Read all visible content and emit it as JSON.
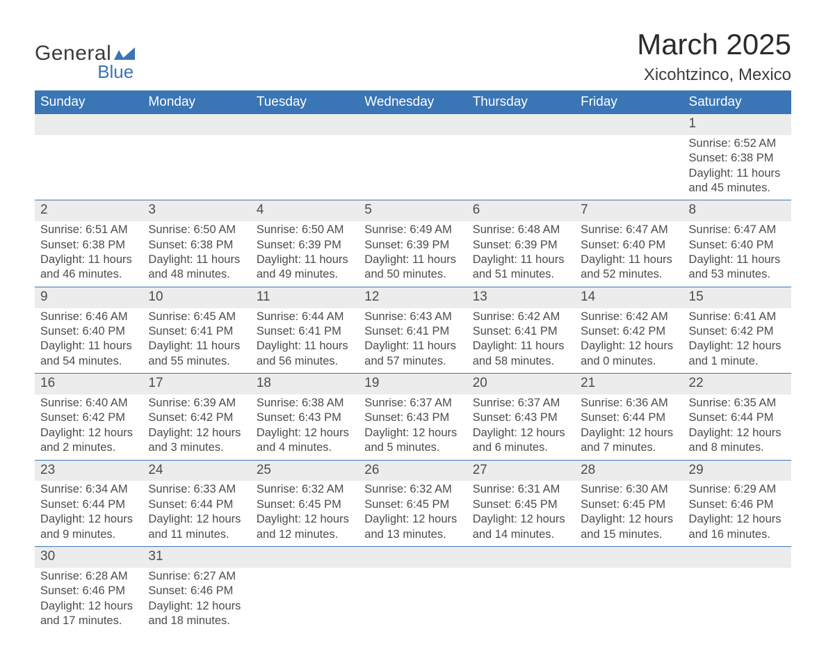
{
  "logo": {
    "text1": "General",
    "text2": "Blue"
  },
  "title": "March 2025",
  "subtitle": "Xicohtzinco, Mexico",
  "colors": {
    "header_bg": "#3a75b5",
    "header_text": "#ffffff",
    "daynum_bg": "#ececec",
    "text": "#4c4c4c",
    "row_border": "#3a75b5",
    "background": "#ffffff"
  },
  "weekdays": [
    "Sunday",
    "Monday",
    "Tuesday",
    "Wednesday",
    "Thursday",
    "Friday",
    "Saturday"
  ],
  "weeks": [
    [
      null,
      null,
      null,
      null,
      null,
      null,
      {
        "n": "1",
        "sr": "Sunrise: 6:52 AM",
        "ss": "Sunset: 6:38 PM",
        "dl": "Daylight: 11 hours and 45 minutes."
      }
    ],
    [
      {
        "n": "2",
        "sr": "Sunrise: 6:51 AM",
        "ss": "Sunset: 6:38 PM",
        "dl": "Daylight: 11 hours and 46 minutes."
      },
      {
        "n": "3",
        "sr": "Sunrise: 6:50 AM",
        "ss": "Sunset: 6:38 PM",
        "dl": "Daylight: 11 hours and 48 minutes."
      },
      {
        "n": "4",
        "sr": "Sunrise: 6:50 AM",
        "ss": "Sunset: 6:39 PM",
        "dl": "Daylight: 11 hours and 49 minutes."
      },
      {
        "n": "5",
        "sr": "Sunrise: 6:49 AM",
        "ss": "Sunset: 6:39 PM",
        "dl": "Daylight: 11 hours and 50 minutes."
      },
      {
        "n": "6",
        "sr": "Sunrise: 6:48 AM",
        "ss": "Sunset: 6:39 PM",
        "dl": "Daylight: 11 hours and 51 minutes."
      },
      {
        "n": "7",
        "sr": "Sunrise: 6:47 AM",
        "ss": "Sunset: 6:40 PM",
        "dl": "Daylight: 11 hours and 52 minutes."
      },
      {
        "n": "8",
        "sr": "Sunrise: 6:47 AM",
        "ss": "Sunset: 6:40 PM",
        "dl": "Daylight: 11 hours and 53 minutes."
      }
    ],
    [
      {
        "n": "9",
        "sr": "Sunrise: 6:46 AM",
        "ss": "Sunset: 6:40 PM",
        "dl": "Daylight: 11 hours and 54 minutes."
      },
      {
        "n": "10",
        "sr": "Sunrise: 6:45 AM",
        "ss": "Sunset: 6:41 PM",
        "dl": "Daylight: 11 hours and 55 minutes."
      },
      {
        "n": "11",
        "sr": "Sunrise: 6:44 AM",
        "ss": "Sunset: 6:41 PM",
        "dl": "Daylight: 11 hours and 56 minutes."
      },
      {
        "n": "12",
        "sr": "Sunrise: 6:43 AM",
        "ss": "Sunset: 6:41 PM",
        "dl": "Daylight: 11 hours and 57 minutes."
      },
      {
        "n": "13",
        "sr": "Sunrise: 6:42 AM",
        "ss": "Sunset: 6:41 PM",
        "dl": "Daylight: 11 hours and 58 minutes."
      },
      {
        "n": "14",
        "sr": "Sunrise: 6:42 AM",
        "ss": "Sunset: 6:42 PM",
        "dl": "Daylight: 12 hours and 0 minutes."
      },
      {
        "n": "15",
        "sr": "Sunrise: 6:41 AM",
        "ss": "Sunset: 6:42 PM",
        "dl": "Daylight: 12 hours and 1 minute."
      }
    ],
    [
      {
        "n": "16",
        "sr": "Sunrise: 6:40 AM",
        "ss": "Sunset: 6:42 PM",
        "dl": "Daylight: 12 hours and 2 minutes."
      },
      {
        "n": "17",
        "sr": "Sunrise: 6:39 AM",
        "ss": "Sunset: 6:42 PM",
        "dl": "Daylight: 12 hours and 3 minutes."
      },
      {
        "n": "18",
        "sr": "Sunrise: 6:38 AM",
        "ss": "Sunset: 6:43 PM",
        "dl": "Daylight: 12 hours and 4 minutes."
      },
      {
        "n": "19",
        "sr": "Sunrise: 6:37 AM",
        "ss": "Sunset: 6:43 PM",
        "dl": "Daylight: 12 hours and 5 minutes."
      },
      {
        "n": "20",
        "sr": "Sunrise: 6:37 AM",
        "ss": "Sunset: 6:43 PM",
        "dl": "Daylight: 12 hours and 6 minutes."
      },
      {
        "n": "21",
        "sr": "Sunrise: 6:36 AM",
        "ss": "Sunset: 6:44 PM",
        "dl": "Daylight: 12 hours and 7 minutes."
      },
      {
        "n": "22",
        "sr": "Sunrise: 6:35 AM",
        "ss": "Sunset: 6:44 PM",
        "dl": "Daylight: 12 hours and 8 minutes."
      }
    ],
    [
      {
        "n": "23",
        "sr": "Sunrise: 6:34 AM",
        "ss": "Sunset: 6:44 PM",
        "dl": "Daylight: 12 hours and 9 minutes."
      },
      {
        "n": "24",
        "sr": "Sunrise: 6:33 AM",
        "ss": "Sunset: 6:44 PM",
        "dl": "Daylight: 12 hours and 11 minutes."
      },
      {
        "n": "25",
        "sr": "Sunrise: 6:32 AM",
        "ss": "Sunset: 6:45 PM",
        "dl": "Daylight: 12 hours and 12 minutes."
      },
      {
        "n": "26",
        "sr": "Sunrise: 6:32 AM",
        "ss": "Sunset: 6:45 PM",
        "dl": "Daylight: 12 hours and 13 minutes."
      },
      {
        "n": "27",
        "sr": "Sunrise: 6:31 AM",
        "ss": "Sunset: 6:45 PM",
        "dl": "Daylight: 12 hours and 14 minutes."
      },
      {
        "n": "28",
        "sr": "Sunrise: 6:30 AM",
        "ss": "Sunset: 6:45 PM",
        "dl": "Daylight: 12 hours and 15 minutes."
      },
      {
        "n": "29",
        "sr": "Sunrise: 6:29 AM",
        "ss": "Sunset: 6:46 PM",
        "dl": "Daylight: 12 hours and 16 minutes."
      }
    ],
    [
      {
        "n": "30",
        "sr": "Sunrise: 6:28 AM",
        "ss": "Sunset: 6:46 PM",
        "dl": "Daylight: 12 hours and 17 minutes."
      },
      {
        "n": "31",
        "sr": "Sunrise: 6:27 AM",
        "ss": "Sunset: 6:46 PM",
        "dl": "Daylight: 12 hours and 18 minutes."
      },
      null,
      null,
      null,
      null,
      null
    ]
  ]
}
